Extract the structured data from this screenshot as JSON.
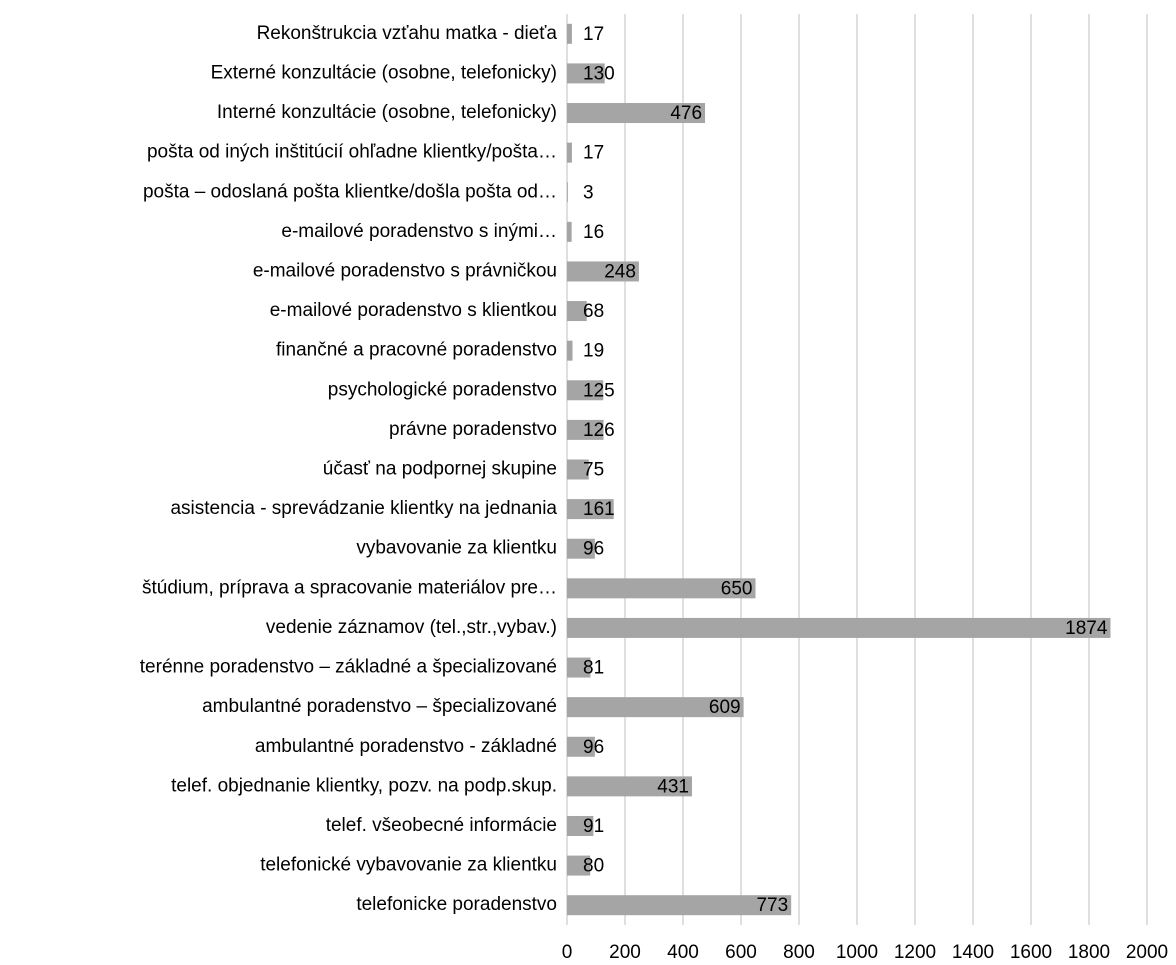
{
  "chart_data": {
    "type": "bar",
    "orientation": "horizontal",
    "categories": [
      "Rekonštrukcia vzťahu matka - dieťa",
      "Externé konzultácie (osobne, telefonicky)",
      "Interné konzultácie (osobne, telefonicky)",
      "pošta od iných inštitúcií ohľadne klientky/pošta…",
      "pošta – odoslaná pošta klientke/došla pošta od…",
      "e-mailové poradenstvo s inými…",
      "e-mailové poradenstvo s právničkou",
      "e-mailové poradenstvo s klientkou",
      "finančné a pracovné poradenstvo",
      "psychologické poradenstvo",
      "právne poradenstvo",
      "účasť na podpornej skupine",
      "asistencia - sprevádzanie klientky na jednania",
      "vybavovanie za klientku",
      "štúdium, príprava a spracovanie materiálov pre…",
      "vedenie záznamov (tel.,str.,vybav.)",
      "terénne poradenstvo – základné a špecializované",
      "ambulantné poradenstvo – špecializované",
      "ambulantné poradenstvo - základné",
      "telef. objednanie klientky, pozv. na podp.skup.",
      "telef. všeobecné informácie",
      "telefonické vybavovanie za klientku",
      "telefonicke poradenstvo"
    ],
    "values": [
      17,
      130,
      476,
      17,
      3,
      16,
      248,
      68,
      19,
      125,
      126,
      75,
      161,
      96,
      650,
      1874,
      81,
      609,
      96,
      431,
      91,
      80,
      773
    ],
    "color": "#a5a5a5",
    "xlim": [
      0,
      2000
    ],
    "xticks": [
      0,
      200,
      400,
      600,
      800,
      1000,
      1200,
      1400,
      1600,
      1800,
      2000
    ],
    "grid": true
  }
}
